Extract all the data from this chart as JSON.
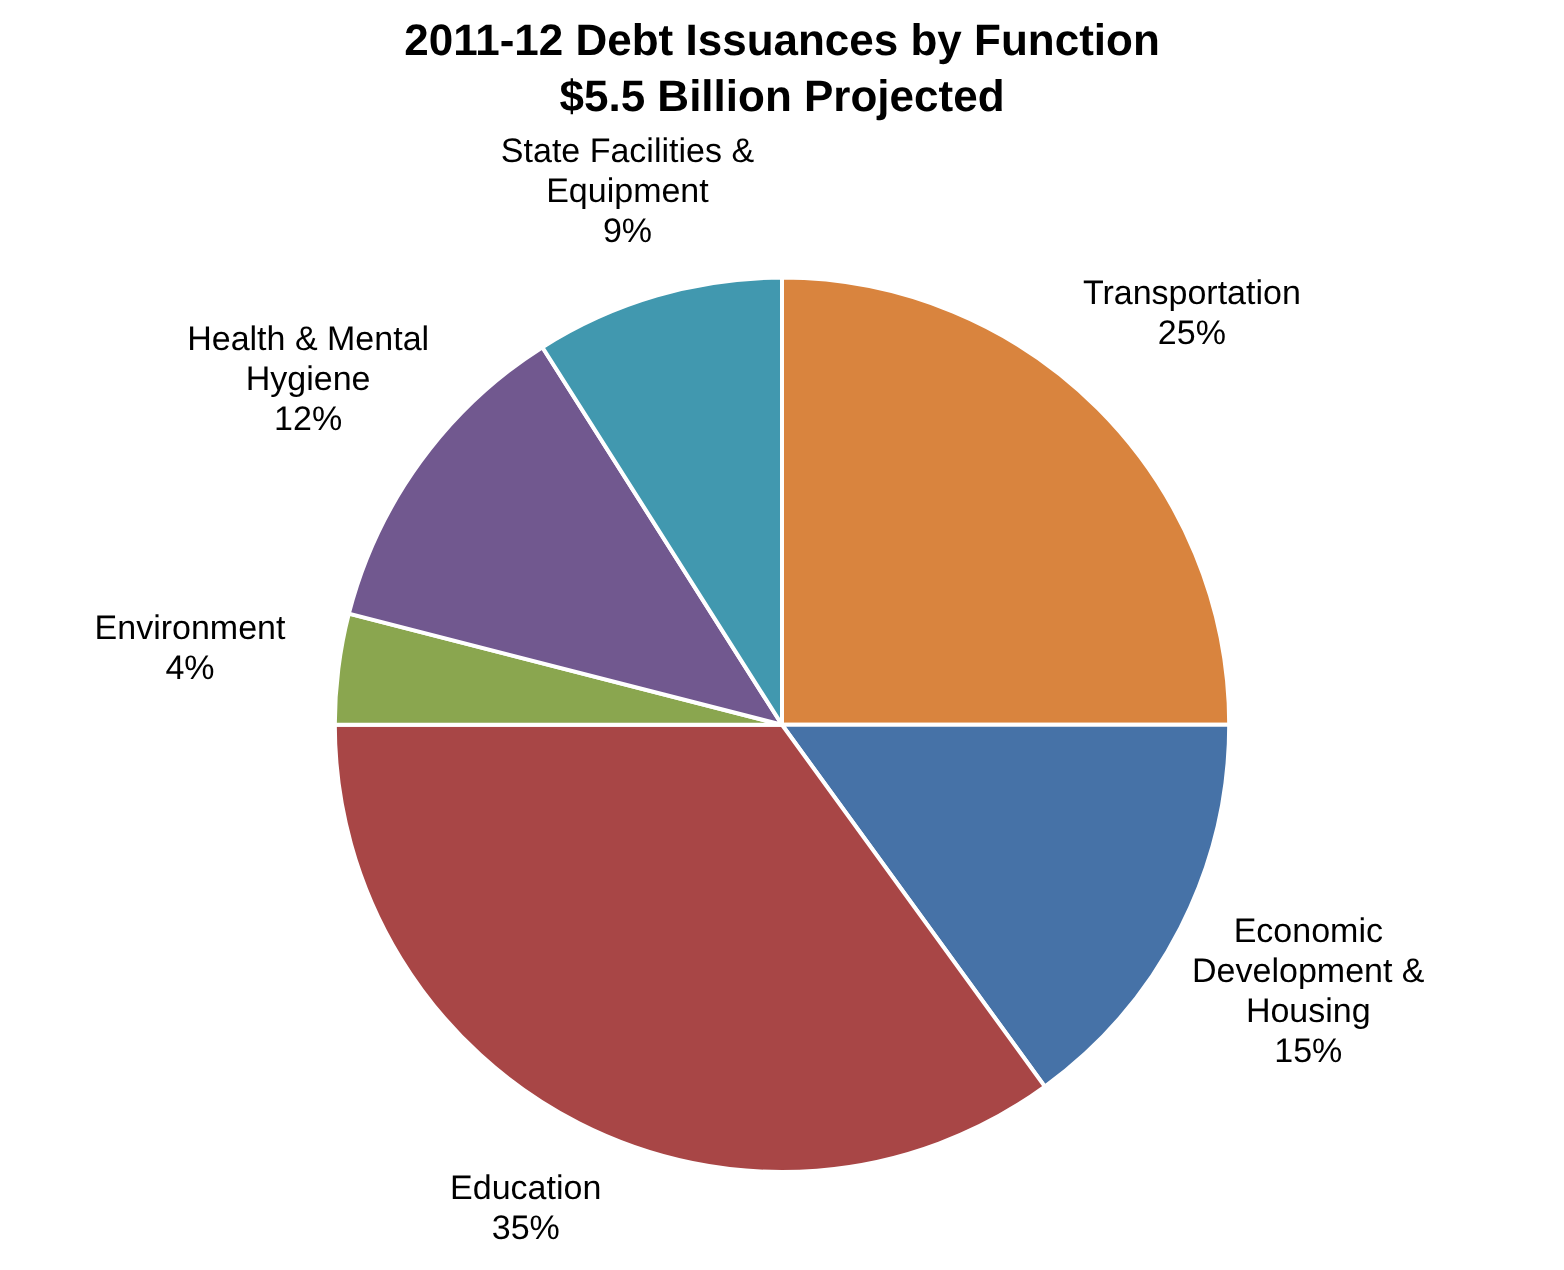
{
  "chart_data": {
    "type": "pie",
    "title": "2011-12 Debt Issuances by Function",
    "subtitle": "$5.5 Billion Projected",
    "categories": [
      "Transportation",
      "Economic Development & Housing",
      "Education",
      "Environment",
      "Health & Mental Hygiene",
      "State Facilities & Equipment"
    ],
    "values": [
      25,
      15,
      35,
      4,
      12,
      9
    ],
    "value_labels": [
      "25%",
      "15%",
      "35%",
      "4%",
      "12%",
      "9%"
    ],
    "colors": [
      "#d9843e",
      "#4672a7",
      "#a84646",
      "#8aa64f",
      "#71588f",
      "#4198af"
    ],
    "legend": false
  }
}
